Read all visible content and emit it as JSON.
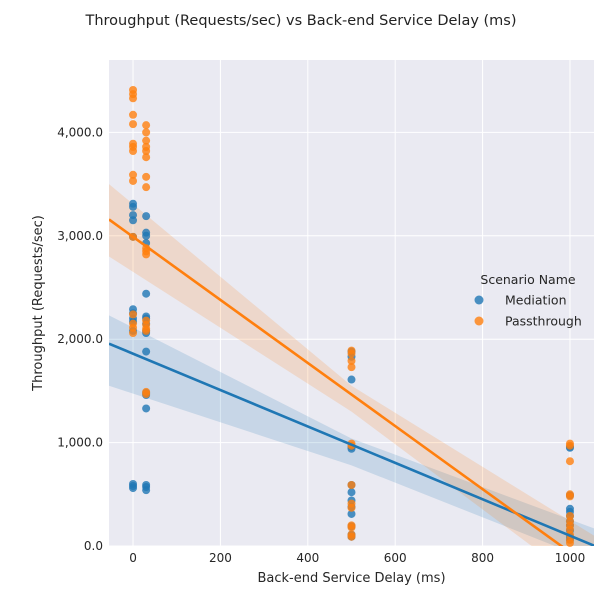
{
  "chart_data": {
    "type": "scatter",
    "title": "Throughput (Requests/sec) vs Back-end Service Delay (ms)",
    "xlabel": "Back-end Service Delay (ms)",
    "ylabel": "Throughput (Requests/sec)",
    "xlim": [
      -55,
      1055
    ],
    "ylim": [
      0,
      4700
    ],
    "x_ticks": [
      0,
      200,
      400,
      600,
      800,
      1000
    ],
    "x_tick_labels": [
      "0",
      "200",
      "400",
      "600",
      "800",
      "1000"
    ],
    "y_ticks": [
      0,
      1000,
      2000,
      3000,
      4000
    ],
    "y_tick_labels": [
      "0.0",
      "1,000.0",
      "2,000.0",
      "3,000.0",
      "4,000.0"
    ],
    "grid": true,
    "legend": {
      "title": "Scenario Name",
      "placement": "right"
    },
    "series": [
      {
        "name": "Mediation",
        "color": "#1f77b4",
        "points": [
          [
            0,
            3310
          ],
          [
            0,
            3280
          ],
          [
            0,
            3200
          ],
          [
            0,
            3150
          ],
          [
            0,
            2990
          ],
          [
            0,
            2290
          ],
          [
            0,
            2250
          ],
          [
            0,
            2200
          ],
          [
            0,
            2170
          ],
          [
            0,
            2080
          ],
          [
            0,
            600
          ],
          [
            0,
            580
          ],
          [
            0,
            560
          ],
          [
            30,
            3190
          ],
          [
            30,
            3030
          ],
          [
            30,
            3000
          ],
          [
            30,
            2930
          ],
          [
            30,
            2440
          ],
          [
            30,
            2220
          ],
          [
            30,
            2200
          ],
          [
            30,
            2150
          ],
          [
            30,
            2080
          ],
          [
            30,
            2060
          ],
          [
            30,
            1880
          ],
          [
            30,
            1480
          ],
          [
            30,
            1460
          ],
          [
            30,
            1330
          ],
          [
            30,
            590
          ],
          [
            30,
            570
          ],
          [
            30,
            540
          ],
          [
            500,
            1880
          ],
          [
            500,
            1830
          ],
          [
            500,
            1610
          ],
          [
            500,
            960
          ],
          [
            500,
            940
          ],
          [
            500,
            590
          ],
          [
            500,
            520
          ],
          [
            500,
            440
          ],
          [
            500,
            380
          ],
          [
            500,
            310
          ],
          [
            500,
            190
          ],
          [
            500,
            110
          ],
          [
            500,
            90
          ],
          [
            1000,
            960
          ],
          [
            1000,
            950
          ],
          [
            1000,
            490
          ],
          [
            1000,
            360
          ],
          [
            1000,
            330
          ],
          [
            1000,
            290
          ],
          [
            1000,
            240
          ],
          [
            1000,
            200
          ],
          [
            1000,
            150
          ],
          [
            1000,
            90
          ],
          [
            1000,
            60
          ]
        ],
        "regression": {
          "intercept": 1860,
          "slope": -1.76,
          "ci": [
            [
              -55,
              1550,
              2230
            ],
            [
              500,
              780,
              1040
            ],
            [
              1055,
              -150,
              170
            ]
          ]
        }
      },
      {
        "name": "Passthrough",
        "color": "#ff7f0e",
        "points": [
          [
            0,
            4410
          ],
          [
            0,
            4370
          ],
          [
            0,
            4330
          ],
          [
            0,
            4170
          ],
          [
            0,
            4080
          ],
          [
            0,
            3890
          ],
          [
            0,
            3860
          ],
          [
            0,
            3820
          ],
          [
            0,
            3590
          ],
          [
            0,
            3530
          ],
          [
            0,
            2990
          ],
          [
            0,
            2240
          ],
          [
            0,
            2150
          ],
          [
            0,
            2110
          ],
          [
            0,
            2060
          ],
          [
            30,
            4070
          ],
          [
            30,
            4000
          ],
          [
            30,
            3920
          ],
          [
            30,
            3860
          ],
          [
            30,
            3820
          ],
          [
            30,
            3760
          ],
          [
            30,
            3570
          ],
          [
            30,
            3470
          ],
          [
            30,
            2880
          ],
          [
            30,
            2850
          ],
          [
            30,
            2820
          ],
          [
            30,
            2180
          ],
          [
            30,
            2140
          ],
          [
            30,
            2100
          ],
          [
            30,
            2080
          ],
          [
            30,
            1490
          ],
          [
            30,
            1470
          ],
          [
            500,
            1890
          ],
          [
            500,
            1860
          ],
          [
            500,
            1790
          ],
          [
            500,
            1730
          ],
          [
            500,
            990
          ],
          [
            500,
            970
          ],
          [
            500,
            590
          ],
          [
            500,
            410
          ],
          [
            500,
            370
          ],
          [
            500,
            200
          ],
          [
            500,
            180
          ],
          [
            500,
            110
          ],
          [
            500,
            90
          ],
          [
            1000,
            990
          ],
          [
            1000,
            970
          ],
          [
            1000,
            820
          ],
          [
            1000,
            500
          ],
          [
            1000,
            480
          ],
          [
            1000,
            290
          ],
          [
            1000,
            240
          ],
          [
            1000,
            200
          ],
          [
            1000,
            160
          ],
          [
            1000,
            110
          ],
          [
            1000,
            60
          ],
          [
            1000,
            30
          ]
        ],
        "regression": {
          "intercept": 2990,
          "slope": -3.05,
          "ci": [
            [
              -55,
              2800,
              3500
            ],
            [
              500,
              1300,
              1550
            ],
            [
              1055,
              -450,
              100
            ]
          ]
        }
      }
    ]
  }
}
